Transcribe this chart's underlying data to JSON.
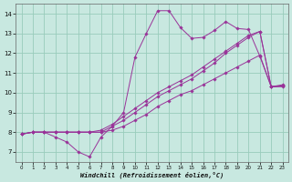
{
  "xlabel": "Windchill (Refroidissement éolien,°C)",
  "bg_color": "#c8e8e0",
  "grid_color": "#99ccbb",
  "line_color": "#993399",
  "xlim_min": -0.5,
  "xlim_max": 23.5,
  "ylim_min": 6.5,
  "ylim_max": 14.5,
  "yticks": [
    7,
    8,
    9,
    10,
    11,
    12,
    13,
    14
  ],
  "xticks": [
    0,
    1,
    2,
    3,
    4,
    5,
    6,
    7,
    8,
    9,
    10,
    11,
    12,
    13,
    14,
    15,
    16,
    17,
    18,
    19,
    20,
    21,
    22,
    23
  ],
  "line1_x": [
    0,
    1,
    2,
    3,
    4,
    5,
    6,
    7,
    8,
    9,
    10,
    11,
    12,
    13,
    14,
    15,
    16,
    17,
    18,
    19,
    20,
    21,
    22,
    23
  ],
  "line1_y": [
    7.9,
    8.0,
    8.0,
    7.75,
    7.5,
    7.0,
    6.75,
    7.75,
    8.3,
    9.0,
    11.8,
    13.0,
    14.15,
    14.15,
    13.3,
    12.75,
    12.8,
    13.15,
    13.6,
    13.25,
    13.2,
    11.85,
    10.3,
    10.35
  ],
  "line2_x": [
    0,
    1,
    2,
    3,
    4,
    5,
    6,
    7,
    8,
    9,
    10,
    11,
    12,
    13,
    14,
    15,
    16,
    17,
    18,
    19,
    20,
    21,
    22,
    23
  ],
  "line2_y": [
    7.9,
    8.0,
    8.0,
    8.0,
    8.0,
    8.0,
    8.0,
    8.0,
    8.3,
    8.6,
    9.0,
    9.4,
    9.8,
    10.1,
    10.4,
    10.7,
    11.1,
    11.5,
    12.0,
    12.4,
    12.8,
    13.1,
    10.3,
    10.4
  ],
  "line3_x": [
    0,
    1,
    2,
    3,
    4,
    5,
    6,
    7,
    8,
    9,
    10,
    11,
    12,
    13,
    14,
    15,
    16,
    17,
    18,
    19,
    20,
    21,
    22,
    23
  ],
  "line3_y": [
    7.9,
    8.0,
    8.0,
    8.0,
    8.0,
    8.0,
    8.0,
    8.1,
    8.4,
    8.8,
    9.2,
    9.6,
    10.0,
    10.3,
    10.6,
    10.9,
    11.3,
    11.7,
    12.1,
    12.5,
    12.9,
    13.1,
    10.3,
    10.35
  ],
  "line4_x": [
    0,
    1,
    2,
    3,
    4,
    5,
    6,
    7,
    8,
    9,
    10,
    11,
    12,
    13,
    14,
    15,
    16,
    17,
    18,
    19,
    20,
    21,
    22,
    23
  ],
  "line4_y": [
    7.9,
    8.0,
    8.0,
    8.0,
    8.0,
    8.0,
    8.0,
    8.0,
    8.1,
    8.3,
    8.6,
    8.9,
    9.3,
    9.6,
    9.9,
    10.1,
    10.4,
    10.7,
    11.0,
    11.3,
    11.6,
    11.9,
    10.3,
    10.3
  ]
}
